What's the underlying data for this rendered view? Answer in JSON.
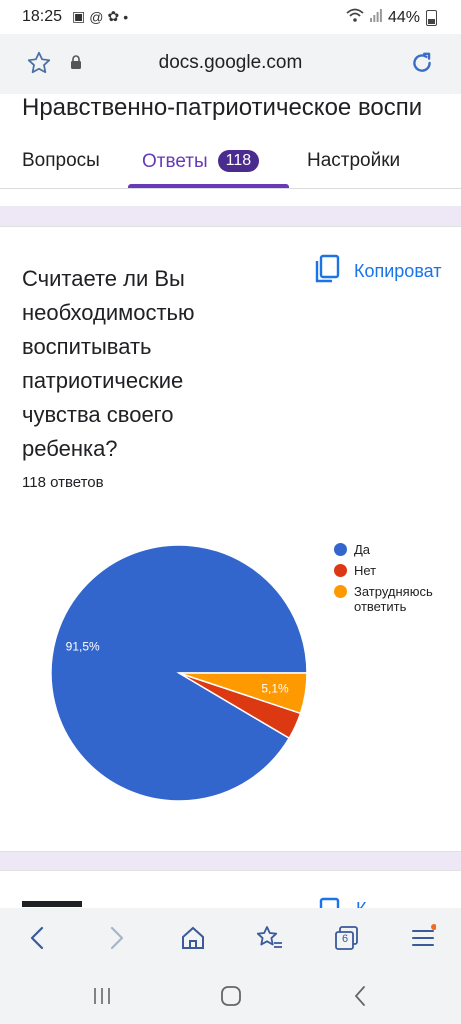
{
  "status": {
    "time": "18:25",
    "battery": "44%"
  },
  "browser": {
    "url": "docs.google.com",
    "tabs_count": "6"
  },
  "form": {
    "title": "Нравственно-патриотическое воспи"
  },
  "tabs": [
    {
      "label": "Вопросы"
    },
    {
      "label": "Ответы",
      "badge": "118"
    },
    {
      "label": "Настройки"
    }
  ],
  "question": {
    "text": "Считаете ли Вы необходимостью воспитывать патриотические чувства своего ребенка?",
    "responses": "118 ответов",
    "copy_label": "Копироват"
  },
  "chart_data": {
    "type": "pie",
    "slices": [
      {
        "label": "Да",
        "value": 91.5,
        "color": "#3366cc",
        "data_label": "91,5%"
      },
      {
        "label": "Нет",
        "value": 3.4,
        "color": "#dc3912",
        "data_label": ""
      },
      {
        "label": "Затрудняюсь ответить",
        "value": 5.1,
        "color": "#ff9900",
        "data_label": "5,1%"
      }
    ],
    "legend_position": "right"
  },
  "next_card": {
    "copy_label": "К"
  }
}
